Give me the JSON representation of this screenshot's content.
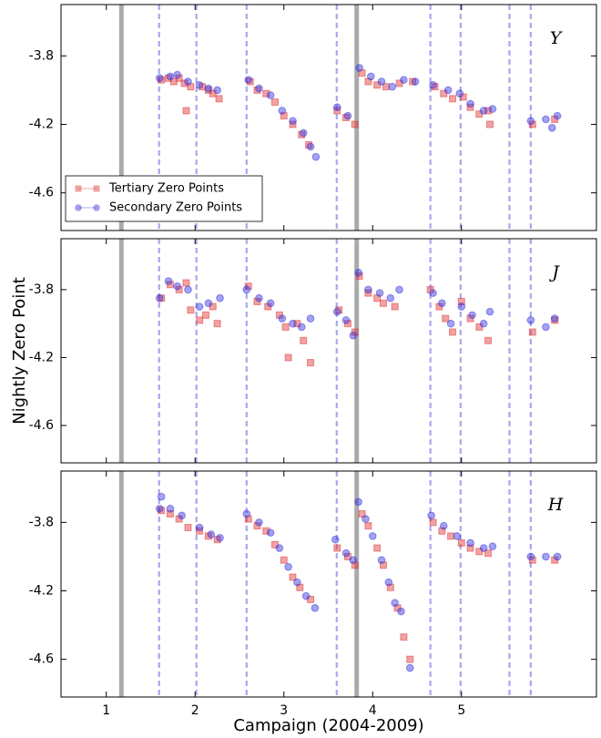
{
  "chart_data": [
    {
      "type": "scatter",
      "panel_label": "Y",
      "ylim": [
        -4.82,
        -3.5
      ],
      "yticks": [
        -3.8,
        -4.2,
        -4.6
      ],
      "legend": "lower left",
      "vlines": {
        "solid": [
          1.17,
          3.82
        ],
        "dashed": [
          1.595,
          2.015,
          2.58,
          3.595,
          4.65,
          4.99,
          5.54,
          5.78
        ]
      },
      "series": [
        {
          "name": "Tertiary Zero Points",
          "color": "#e03030",
          "marker": "square",
          "x": [
            1.62,
            1.7,
            1.76,
            1.82,
            1.88,
            1.9,
            1.95,
            2.08,
            2.15,
            2.2,
            2.27,
            2.62,
            2.7,
            2.8,
            2.9,
            3.0,
            3.1,
            3.2,
            3.28,
            3.6,
            3.7,
            3.8,
            3.88,
            3.95,
            4.05,
            4.15,
            4.3,
            4.45,
            4.7,
            4.8,
            4.9,
            5.02,
            5.1,
            5.2,
            5.3,
            5.32,
            5.8,
            6.05
          ],
          "values": [
            -3.94,
            -3.93,
            -3.95,
            -3.93,
            -3.96,
            -4.12,
            -3.98,
            -3.98,
            -4.0,
            -4.02,
            -4.05,
            -3.95,
            -4.0,
            -4.02,
            -4.07,
            -4.15,
            -4.2,
            -4.26,
            -4.32,
            -4.12,
            -4.16,
            -4.2,
            -3.9,
            -3.95,
            -3.97,
            -3.98,
            -3.96,
            -3.95,
            -3.98,
            -4.02,
            -4.05,
            -4.04,
            -4.1,
            -4.14,
            -4.12,
            -4.2,
            -4.2,
            -4.17
          ]
        },
        {
          "name": "Secondary Zero Points",
          "color": "#3030e0",
          "marker": "circle",
          "x": [
            1.6,
            1.72,
            1.8,
            1.92,
            2.05,
            2.15,
            2.25,
            2.6,
            2.72,
            2.85,
            2.98,
            3.1,
            3.22,
            3.3,
            3.36,
            3.6,
            3.72,
            3.85,
            3.98,
            4.1,
            4.22,
            4.35,
            4.48,
            4.68,
            4.85,
            4.98,
            5.1,
            5.25,
            5.35,
            5.78,
            5.95,
            6.02,
            6.08
          ],
          "values": [
            -3.93,
            -3.92,
            -3.91,
            -3.95,
            -3.97,
            -3.99,
            -4.0,
            -3.94,
            -3.99,
            -4.03,
            -4.12,
            -4.18,
            -4.25,
            -4.33,
            -4.39,
            -4.1,
            -4.15,
            -3.87,
            -3.92,
            -3.95,
            -3.98,
            -3.94,
            -3.95,
            -3.97,
            -4.0,
            -4.02,
            -4.08,
            -4.12,
            -4.11,
            -4.18,
            -4.17,
            -4.22,
            -4.15
          ]
        }
      ]
    },
    {
      "type": "scatter",
      "panel_label": "J",
      "ylim": [
        -4.82,
        -3.5
      ],
      "yticks": [
        -3.8,
        -4.2,
        -4.6
      ],
      "ylabel": "Nightly Zero Point",
      "vlines": {
        "solid": [
          1.17,
          3.82
        ],
        "dashed": [
          1.595,
          2.015,
          2.58,
          3.595,
          4.65,
          4.99,
          5.54,
          5.78
        ]
      },
      "series": [
        {
          "color": "#e03030",
          "marker": "square",
          "x": [
            1.62,
            1.72,
            1.82,
            1.9,
            1.95,
            2.05,
            2.12,
            2.2,
            2.25,
            2.6,
            2.7,
            2.82,
            2.95,
            3.02,
            3.05,
            3.15,
            3.22,
            3.3,
            3.62,
            3.72,
            3.8,
            3.85,
            3.95,
            4.05,
            4.12,
            4.25,
            4.65,
            4.75,
            4.82,
            4.9,
            5.0,
            5.1,
            5.2,
            5.3,
            5.8,
            6.05
          ],
          "values": [
            -3.85,
            -3.77,
            -3.8,
            -3.76,
            -3.92,
            -3.98,
            -3.95,
            -3.9,
            -4.0,
            -3.78,
            -3.87,
            -3.9,
            -3.95,
            -4.02,
            -4.2,
            -4.0,
            -4.1,
            -4.23,
            -3.92,
            -4.0,
            -4.05,
            -3.72,
            -3.82,
            -3.85,
            -3.88,
            -3.9,
            -3.8,
            -3.9,
            -3.97,
            -4.05,
            -3.87,
            -3.97,
            -4.02,
            -4.1,
            -4.05,
            -3.98
          ]
        },
        {
          "color": "#3030e0",
          "marker": "circle",
          "x": [
            1.6,
            1.7,
            1.8,
            1.92,
            2.05,
            2.15,
            2.28,
            2.58,
            2.72,
            2.85,
            2.98,
            3.1,
            3.2,
            3.3,
            3.6,
            3.7,
            3.78,
            3.84,
            3.95,
            4.08,
            4.2,
            4.3,
            4.68,
            4.78,
            4.88,
            5.0,
            5.12,
            5.25,
            5.32,
            5.78,
            5.95,
            6.05
          ],
          "values": [
            -3.85,
            -3.75,
            -3.78,
            -3.8,
            -3.9,
            -3.88,
            -3.85,
            -3.8,
            -3.85,
            -3.88,
            -3.97,
            -4.0,
            -4.02,
            -3.97,
            -3.93,
            -3.98,
            -4.07,
            -3.7,
            -3.8,
            -3.82,
            -3.85,
            -3.8,
            -3.82,
            -3.88,
            -4.0,
            -3.9,
            -3.95,
            -4.0,
            -3.93,
            -3.98,
            -4.02,
            -3.97
          ]
        }
      ]
    },
    {
      "type": "scatter",
      "panel_label": "H",
      "ylim": [
        -4.82,
        -3.5
      ],
      "yticks": [
        -3.8,
        -4.2,
        -4.6
      ],
      "xlim": [
        0.49,
        6.52
      ],
      "xticks": [
        1,
        2,
        3,
        4,
        5
      ],
      "xlabel": "Campaign (2004-2009)",
      "vlines": {
        "solid": [
          1.17,
          3.82
        ],
        "dashed": [
          1.595,
          2.015,
          2.58,
          3.595,
          4.65,
          4.99,
          5.54,
          5.78
        ]
      },
      "series": [
        {
          "color": "#e03030",
          "marker": "square",
          "x": [
            1.62,
            1.72,
            1.82,
            1.92,
            2.05,
            2.15,
            2.25,
            2.6,
            2.7,
            2.8,
            2.9,
            3.0,
            3.1,
            3.18,
            3.3,
            3.6,
            3.72,
            3.8,
            3.88,
            3.95,
            4.05,
            4.12,
            4.2,
            4.28,
            4.35,
            4.42,
            4.68,
            4.78,
            4.88,
            5.0,
            5.1,
            5.2,
            5.3,
            5.8,
            6.05
          ],
          "values": [
            -3.73,
            -3.75,
            -3.78,
            -3.83,
            -3.85,
            -3.88,
            -3.9,
            -3.78,
            -3.82,
            -3.85,
            -3.93,
            -4.02,
            -4.12,
            -4.18,
            -4.25,
            -3.95,
            -4.0,
            -4.05,
            -3.75,
            -3.82,
            -3.95,
            -4.05,
            -4.18,
            -4.3,
            -4.47,
            -4.6,
            -3.8,
            -3.85,
            -3.88,
            -3.92,
            -3.95,
            -3.97,
            -3.98,
            -4.02,
            -4.02
          ]
        },
        {
          "color": "#3030e0",
          "marker": "circle",
          "x": [
            1.6,
            1.62,
            1.72,
            1.85,
            2.05,
            2.18,
            2.28,
            2.58,
            2.72,
            2.85,
            2.95,
            3.05,
            3.15,
            3.25,
            3.35,
            3.58,
            3.7,
            3.78,
            3.84,
            3.92,
            4.0,
            4.1,
            4.18,
            4.25,
            4.32,
            4.42,
            4.66,
            4.8,
            4.95,
            5.1,
            5.25,
            5.35,
            5.78,
            5.95,
            6.08
          ],
          "values": [
            -3.72,
            -3.65,
            -3.72,
            -3.76,
            -3.83,
            -3.87,
            -3.89,
            -3.75,
            -3.8,
            -3.86,
            -3.95,
            -4.06,
            -4.15,
            -4.23,
            -4.3,
            -3.9,
            -3.98,
            -4.02,
            -3.68,
            -3.78,
            -3.88,
            -4.02,
            -4.15,
            -4.27,
            -4.32,
            -4.65,
            -3.76,
            -3.82,
            -3.88,
            -3.92,
            -3.95,
            -3.94,
            -4.0,
            -4.0,
            -4.0
          ]
        }
      ]
    }
  ]
}
